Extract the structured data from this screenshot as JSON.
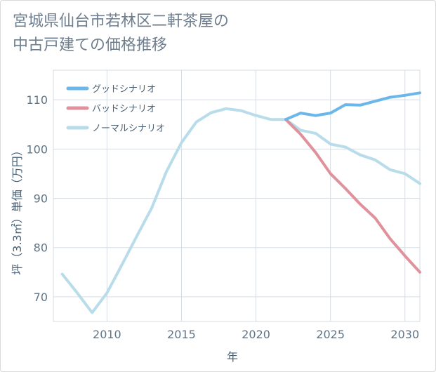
{
  "title_line1": "宮城県仙台市若林区二軒茶屋の",
  "title_line2": "中古戸建ての価格推移",
  "chart_data": {
    "type": "line",
    "xlabel": "年",
    "ylabel": "坪（3.3㎡）単価（万円）",
    "xlim": [
      2006.4,
      2031
    ],
    "ylim": [
      65,
      116
    ],
    "xticks": [
      2010,
      2015,
      2020,
      2025,
      2030
    ],
    "yticks": [
      70,
      80,
      90,
      100,
      110
    ],
    "grid": true,
    "legend_position": "top-left",
    "series": [
      {
        "name": "グッドシナリオ",
        "color": "#6bb6ea",
        "x": [
          2022,
          2023,
          2024,
          2025,
          2026,
          2027,
          2028,
          2029,
          2030,
          2031
        ],
        "y": [
          106.0,
          107.3,
          106.8,
          107.3,
          109.0,
          108.9,
          109.7,
          110.5,
          110.9,
          111.4
        ]
      },
      {
        "name": "バッドシナリオ",
        "color": "#e0919b",
        "x": [
          2022,
          2023,
          2024,
          2025,
          2026,
          2027,
          2028,
          2029,
          2030,
          2031
        ],
        "y": [
          106.0,
          103.0,
          99.3,
          95.0,
          92.0,
          88.8,
          86.0,
          81.8,
          78.3,
          75.0
        ]
      },
      {
        "name": "ノーマルシナリオ",
        "color": "#b9dcea",
        "x": [
          2007,
          2008,
          2009,
          2010,
          2011,
          2012,
          2013,
          2014,
          2015,
          2016,
          2017,
          2018,
          2019,
          2020,
          2021,
          2022,
          2023,
          2024,
          2025,
          2026,
          2027,
          2028,
          2029,
          2030,
          2031
        ],
        "y": [
          74.6,
          70.8,
          66.8,
          70.8,
          76.5,
          82.3,
          88.0,
          95.5,
          101.3,
          105.5,
          107.4,
          108.2,
          107.8,
          106.8,
          106.0,
          106.0,
          103.8,
          103.2,
          101.0,
          100.4,
          98.8,
          97.8,
          95.8,
          95.0,
          93.0
        ]
      }
    ]
  }
}
